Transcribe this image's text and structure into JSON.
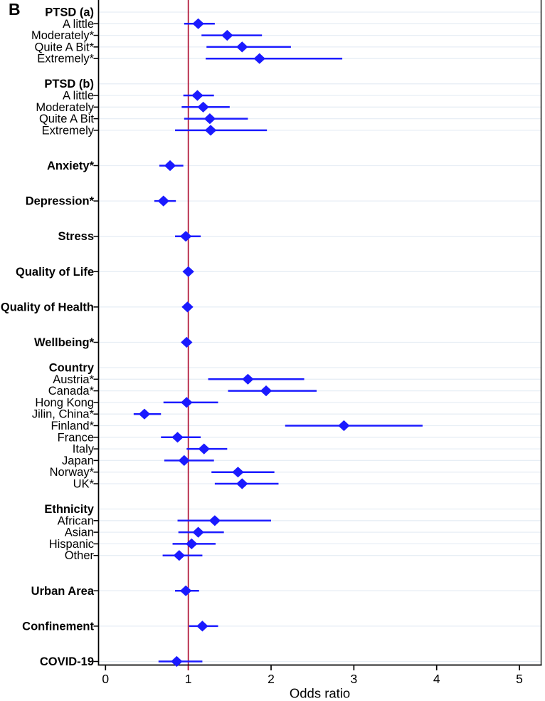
{
  "panel_label": "B",
  "chart_data": {
    "type": "scatter",
    "subtype": "forest-plot",
    "xlabel": "Odds ratio",
    "x_ticks": [
      0,
      1,
      2,
      3,
      4,
      5
    ],
    "xlim": [
      0,
      5.27
    ],
    "reference_line": 1.0,
    "legend": "none",
    "grid": "horizontal-light",
    "colors": {
      "marker": "#1a1aff",
      "ci_line": "#1c1cff",
      "reference_line": "#b01335",
      "gridline": "#e7eef5",
      "axis": "#000000",
      "text": "#000000"
    },
    "sections": [
      {
        "header": "PTSD (a)",
        "items": [
          {
            "label": "A little",
            "or": 1.12,
            "lo": 0.95,
            "hi": 1.32
          },
          {
            "label": "Moderately*",
            "or": 1.47,
            "lo": 1.16,
            "hi": 1.89
          },
          {
            "label": "Quite A Bit*",
            "or": 1.65,
            "lo": 1.22,
            "hi": 2.24
          },
          {
            "label": "Extremely*",
            "or": 1.86,
            "lo": 1.21,
            "hi": 2.86
          }
        ]
      },
      {
        "header": "PTSD (b)",
        "items": [
          {
            "label": "A little",
            "or": 1.11,
            "lo": 0.94,
            "hi": 1.31
          },
          {
            "label": "Moderately",
            "or": 1.18,
            "lo": 0.92,
            "hi": 1.5
          },
          {
            "label": "Quite A Bit",
            "or": 1.26,
            "lo": 0.95,
            "hi": 1.72
          },
          {
            "label": "Extremely",
            "or": 1.27,
            "lo": 0.84,
            "hi": 1.95
          }
        ]
      },
      {
        "header": null,
        "items": [
          {
            "label": "Anxiety*",
            "bold": true,
            "or": 0.78,
            "lo": 0.65,
            "hi": 0.94
          }
        ]
      },
      {
        "header": null,
        "items": [
          {
            "label": "Depression*",
            "bold": true,
            "or": 0.7,
            "lo": 0.59,
            "hi": 0.85
          }
        ]
      },
      {
        "header": null,
        "items": [
          {
            "label": "Stress",
            "bold": true,
            "or": 0.97,
            "lo": 0.84,
            "hi": 1.15
          }
        ]
      },
      {
        "header": null,
        "items": [
          {
            "label": "Quality of Life",
            "bold": true,
            "or": 1.0,
            "lo": 0.99,
            "hi": 1.02
          }
        ]
      },
      {
        "header": null,
        "items": [
          {
            "label": "Quality of Health",
            "bold": true,
            "or": 0.99,
            "lo": 0.98,
            "hi": 1.0
          }
        ]
      },
      {
        "header": null,
        "items": [
          {
            "label": "Wellbeing*",
            "bold": true,
            "or": 0.98,
            "lo": 0.97,
            "hi": 0.99
          }
        ]
      },
      {
        "header": "Country",
        "items": [
          {
            "label": "Austria*",
            "or": 1.72,
            "lo": 1.24,
            "hi": 2.4
          },
          {
            "label": "Canada*",
            "or": 1.94,
            "lo": 1.48,
            "hi": 2.55
          },
          {
            "label": "Hong Kong",
            "or": 0.98,
            "lo": 0.7,
            "hi": 1.36
          },
          {
            "label": "Jilin, China*",
            "or": 0.47,
            "lo": 0.34,
            "hi": 0.67
          },
          {
            "label": "Finland*",
            "or": 2.88,
            "lo": 2.17,
            "hi": 3.83
          },
          {
            "label": "France",
            "or": 0.87,
            "lo": 0.67,
            "hi": 1.15
          },
          {
            "label": "Italy",
            "or": 1.19,
            "lo": 0.98,
            "hi": 1.47
          },
          {
            "label": "Japan",
            "or": 0.95,
            "lo": 0.71,
            "hi": 1.31
          },
          {
            "label": "Norway*",
            "or": 1.6,
            "lo": 1.28,
            "hi": 2.04
          },
          {
            "label": "UK*",
            "or": 1.65,
            "lo": 1.32,
            "hi": 2.09
          }
        ]
      },
      {
        "header": "Ethnicity",
        "items": [
          {
            "label": "African",
            "or": 1.32,
            "lo": 0.87,
            "hi": 2.0
          },
          {
            "label": "Asian",
            "or": 1.12,
            "lo": 0.88,
            "hi": 1.43
          },
          {
            "label": "Hispanic",
            "or": 1.04,
            "lo": 0.81,
            "hi": 1.33
          },
          {
            "label": "Other",
            "or": 0.89,
            "lo": 0.69,
            "hi": 1.17
          }
        ]
      },
      {
        "header": null,
        "items": [
          {
            "label": "Urban Area",
            "bold": true,
            "or": 0.97,
            "lo": 0.84,
            "hi": 1.13
          }
        ]
      },
      {
        "header": null,
        "items": [
          {
            "label": "Confinement",
            "bold": true,
            "or": 1.17,
            "lo": 1.01,
            "hi": 1.36
          }
        ]
      },
      {
        "header": null,
        "items": [
          {
            "label": "COVID-19",
            "bold": true,
            "or": 0.86,
            "lo": 0.64,
            "hi": 1.17
          }
        ]
      }
    ]
  }
}
